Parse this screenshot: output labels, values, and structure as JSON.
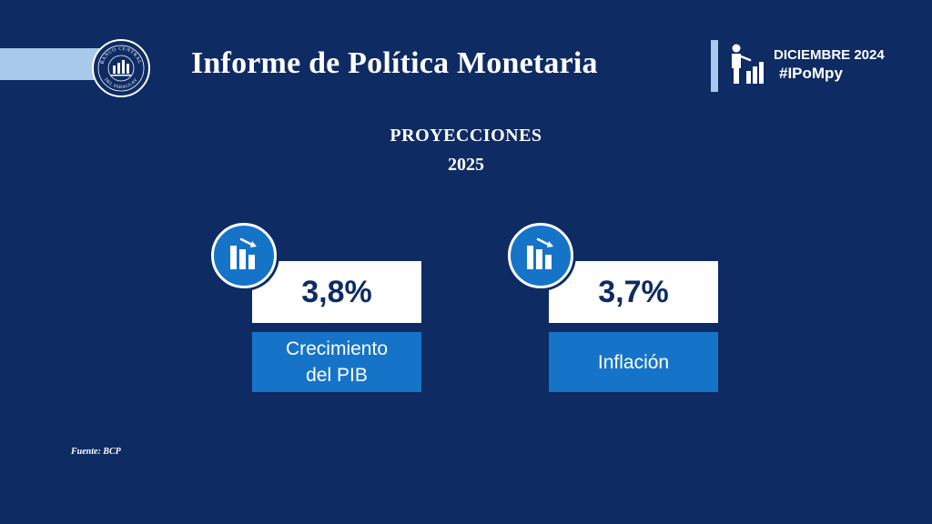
{
  "header": {
    "title": "Informe de Política Monetaria",
    "date": "DICIEMBRE 2024",
    "hashtag": "#IPoMpy",
    "logo_text": "BANCO CENTRAL DEL PARAGUAY",
    "logo_icon": "bank-seal-icon",
    "person_icon": "presenter-chart-icon"
  },
  "section": {
    "title": "PROYECCIONES",
    "year": "2025"
  },
  "cards": [
    {
      "value": "3,8%",
      "label": "Crecimiento\ndel PIB",
      "icon": "bar-chart-icon"
    },
    {
      "value": "3,7%",
      "label": "Inflación",
      "icon": "bar-chart-icon"
    }
  ],
  "footer": {
    "source": "Fuente: BCP"
  },
  "colors": {
    "background": "#0e2b63",
    "accent_light": "#a9c9ea",
    "accent_blue": "#1574c8",
    "white": "#ffffff"
  }
}
